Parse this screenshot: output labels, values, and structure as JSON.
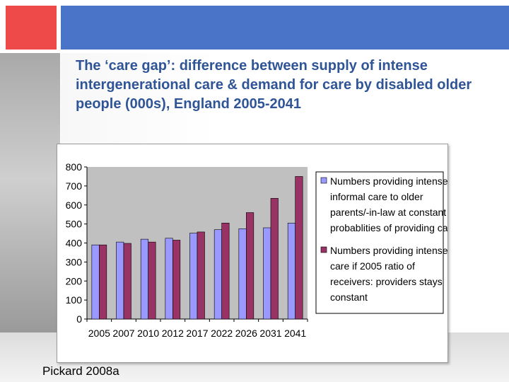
{
  "slide": {
    "title": "The ‘care gap’: difference between supply of intense intergenerational care & demand for care by disabled older people (000s), England 2005-2041",
    "credit": "Pickard 2008a"
  },
  "colors": {
    "accent_red": "#ef4a4a",
    "accent_blue": "#4a74c7",
    "title_blue": "#2f5597",
    "plot_area": "#c0c0c0",
    "series_1": "#9999ff",
    "series_2": "#993366"
  },
  "chart_data": {
    "type": "bar",
    "categories": [
      "2005",
      "2007",
      "2010",
      "2012",
      "2017",
      "2022",
      "2026",
      "2031",
      "2041"
    ],
    "series": [
      {
        "name": "Numbers providing intense informal care to older parents/-in-law at constant probablities of providing care",
        "legend_lines": [
          "Numbers providing intense",
          "informal care to older",
          "parents/-in-law at constant",
          "probablities of providing care"
        ],
        "values": [
          390,
          405,
          420,
          425,
          452,
          470,
          475,
          480,
          505
        ]
      },
      {
        "name": "Numbers providing intense care if 2005 ratio of receivers: providers stays constant",
        "legend_lines": [
          "Numbers providing intense",
          "care if 2005 ratio of",
          "receivers: providers stays",
          "constant"
        ],
        "values": [
          390,
          398,
          405,
          415,
          458,
          505,
          560,
          635,
          750
        ]
      }
    ],
    "yticks": [
      0,
      100,
      200,
      300,
      400,
      500,
      600,
      700,
      800
    ],
    "ylim": [
      0,
      800
    ],
    "grid": false,
    "legend_position": "right"
  }
}
